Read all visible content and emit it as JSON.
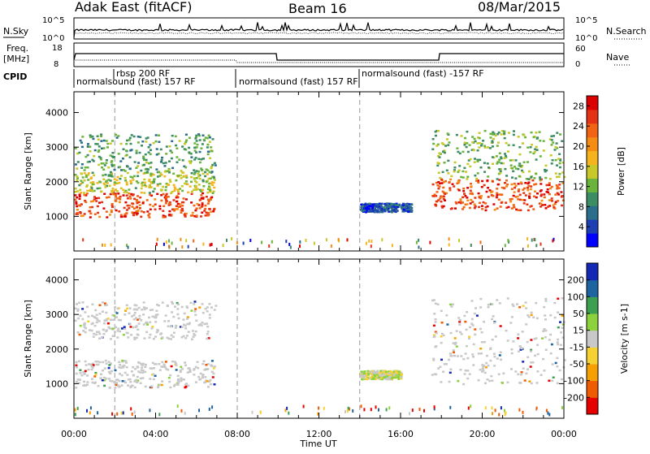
{
  "header": {
    "radar": "Adak East (fitACF)",
    "beam": "Beam 16",
    "date": "08/Mar/2015"
  },
  "top_panels": {
    "nsky_label": "N.Sky",
    "nsearch_label": "N.Search",
    "freq_label_1": "Freq.",
    "freq_label_2": "[MHz]",
    "nave_label": "Nave",
    "cpid_label": "CPID",
    "left_ticks_1": [
      "10^5",
      "10^0"
    ],
    "right_ticks_1": [
      "10^5",
      "10^0"
    ],
    "left_ticks_2": [
      "18",
      "8"
    ],
    "right_ticks_2": [
      "60",
      "0"
    ],
    "cpid_segments": [
      {
        "label": "normalsound (fast) 157 RF"
      },
      {
        "label": "rbsp 200 RF"
      },
      {
        "label": "normalsound (fast) 157 RF"
      },
      {
        "label": "normalsound (fast) -157 RF"
      }
    ]
  },
  "chart_data": [
    {
      "type": "heatmap",
      "title": "",
      "xlabel": "Time UT",
      "ylabel": "Slant Range [km]",
      "xlim": [
        0,
        24
      ],
      "ylim": [
        0,
        4600
      ],
      "x_tick_labels": [
        "00:00",
        "04:00",
        "08:00",
        "12:00",
        "16:00",
        "20:00",
        "00:00"
      ],
      "y_tick_labels": [
        "1000",
        "2000",
        "3000",
        "4000"
      ],
      "y_ticks": [
        1000,
        2000,
        3000,
        4000
      ],
      "colorbar": {
        "label": "Power [dB]",
        "ticks": [
          "4",
          "8",
          "12",
          "16",
          "20",
          "24",
          "28"
        ],
        "range": [
          0,
          30
        ],
        "colors": [
          "#0000ff",
          "#1e3fb4",
          "#2a6e8c",
          "#3c8c64",
          "#6ab43c",
          "#c8c828",
          "#f5b41e",
          "#f58c14",
          "#f06414",
          "#e63214",
          "#dc0000"
        ]
      },
      "vertical_markers_ut": [
        2,
        8,
        14
      ],
      "echo_regions": [
        {
          "t_start": 0.0,
          "t_end": 6.9,
          "range_start": 1000,
          "range_end": 1700,
          "level": 26
        },
        {
          "t_start": 0.0,
          "t_end": 6.9,
          "range_start": 1700,
          "range_end": 2300,
          "level": 14
        },
        {
          "t_start": 0.0,
          "t_end": 6.9,
          "range_start": 2300,
          "range_end": 3400,
          "level": 10
        },
        {
          "t_start": 14.0,
          "t_end": 16.5,
          "range_start": 1150,
          "range_end": 1400,
          "level": 4
        },
        {
          "t_start": 17.5,
          "t_end": 24.0,
          "range_start": 1200,
          "range_end": 2100,
          "level": 26
        },
        {
          "t_start": 17.5,
          "t_end": 24.0,
          "range_start": 2100,
          "range_end": 3500,
          "level": 12
        }
      ]
    },
    {
      "type": "heatmap",
      "title": "",
      "xlabel": "Time UT",
      "ylabel": "Slant Range [km]",
      "xlim": [
        0,
        24
      ],
      "ylim": [
        0,
        4600
      ],
      "x_tick_labels": [
        "00:00",
        "04:00",
        "08:00",
        "12:00",
        "16:00",
        "20:00",
        "00:00"
      ],
      "y_tick_labels": [
        "1000",
        "2000",
        "3000",
        "4000"
      ],
      "y_ticks": [
        1000,
        2000,
        3000,
        4000
      ],
      "colorbar": {
        "label": "Velocity [m s-1]",
        "ticks": [
          "-200",
          "-100",
          "-50",
          "-15",
          "15",
          "50",
          "100",
          "200"
        ],
        "colors": [
          "#e60000",
          "#f05a00",
          "#f5a000",
          "#f5d232",
          "#c8c8c8",
          "#8cd23c",
          "#3ca050",
          "#1e64a0",
          "#1428b4"
        ]
      },
      "vertical_markers_ut": [
        2,
        8,
        14
      ],
      "echo_regions": [
        {
          "t_start": 0.0,
          "t_end": 6.9,
          "range_start": 900,
          "range_end": 1700,
          "velocity_class": "ground scatter"
        },
        {
          "t_start": 0.0,
          "t_end": 6.9,
          "range_start": 2300,
          "range_end": 3400,
          "velocity_class": "ground scatter"
        },
        {
          "t_start": 14.0,
          "t_end": 16.0,
          "range_start": 1150,
          "range_end": 1400,
          "velocity_class": "-50 to 50"
        },
        {
          "t_start": 17.5,
          "t_end": 24.0,
          "range_start": 1000,
          "range_end": 3500,
          "velocity_class": "ground scatter"
        }
      ]
    }
  ]
}
